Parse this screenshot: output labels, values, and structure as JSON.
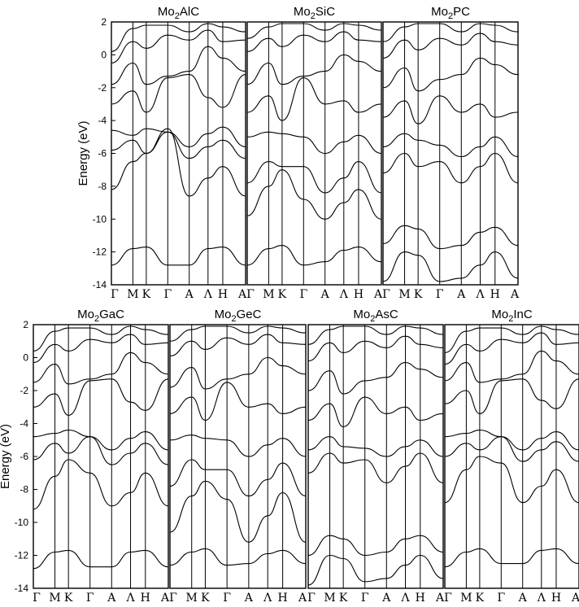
{
  "chart_data": {
    "type": "line",
    "ylabel": "Energy (eV)",
    "ylim": [
      -14,
      2
    ],
    "yticks": [
      2,
      0,
      -2,
      -4,
      -6,
      -8,
      -10,
      -12,
      -14
    ],
    "kpath": [
      "Γ",
      "M",
      "K",
      "Γ",
      "A",
      "Λ",
      "H",
      "A"
    ],
    "kpos": [
      0,
      0.16,
      0.26,
      0.42,
      0.58,
      0.72,
      0.83,
      1.0
    ],
    "panels": [
      {
        "title_main": "Mo",
        "title_sub": "2",
        "title_rest": "AlC",
        "bands": [
          {
            "name": "b1",
            "y": [
              -12.8,
              -11.8,
              -11.7,
              -12.8,
              -12.8,
              -11.8,
              -11.7,
              -12.8
            ]
          },
          {
            "name": "b2",
            "y": [
              -8.2,
              -6.5,
              -6.0,
              -4.5,
              -8.6,
              -7.5,
              -6.8,
              -8.6
            ]
          },
          {
            "name": "b3",
            "y": [
              -5.8,
              -5.2,
              -6.0,
              -4.7,
              -6.3,
              -5.6,
              -5.2,
              -6.3
            ]
          },
          {
            "name": "b4",
            "y": [
              -4.6,
              -4.9,
              -4.5,
              -4.7,
              -5.6,
              -4.8,
              -4.4,
              -5.6
            ]
          },
          {
            "name": "b5",
            "y": [
              -3.0,
              -2.2,
              -3.5,
              -1.4,
              -1.2,
              -2.6,
              -3.2,
              -1.2
            ]
          },
          {
            "name": "b6",
            "y": [
              -1.8,
              -0.5,
              -1.8,
              -1.3,
              -1.0,
              0.5,
              -0.2,
              -1.0
            ]
          },
          {
            "name": "b7",
            "y": [
              -0.5,
              0.8,
              0.4,
              1.2,
              0.9,
              1.5,
              0.8,
              0.9
            ]
          },
          {
            "name": "b8",
            "y": [
              0.2,
              1.6,
              1.8,
              1.8,
              1.4,
              1.9,
              1.7,
              1.4
            ]
          }
        ]
      },
      {
        "title_main": "Mo",
        "title_sub": "2",
        "title_rest": "SiC",
        "bands": [
          {
            "name": "b1",
            "y": [
              -12.8,
              -11.8,
              -11.6,
              -12.8,
              -12.6,
              -11.9,
              -11.7,
              -12.6
            ]
          },
          {
            "name": "b2",
            "y": [
              -9.8,
              -8.0,
              -7.0,
              -8.8,
              -10.0,
              -9.0,
              -8.2,
              -10.0
            ]
          },
          {
            "name": "b3",
            "y": [
              -7.8,
              -6.5,
              -6.8,
              -6.8,
              -8.4,
              -7.5,
              -6.5,
              -8.4
            ]
          },
          {
            "name": "b4",
            "y": [
              -5.0,
              -4.7,
              -4.8,
              -5.0,
              -6.0,
              -5.3,
              -4.9,
              -6.0
            ]
          },
          {
            "name": "b5",
            "y": [
              -3.5,
              -2.5,
              -4.0,
              -1.4,
              -3.0,
              -2.8,
              -3.5,
              -3.0
            ]
          },
          {
            "name": "b6",
            "y": [
              -1.8,
              -0.5,
              -1.8,
              -1.3,
              -1.0,
              0.0,
              -0.4,
              -1.0
            ]
          },
          {
            "name": "b7",
            "y": [
              0.2,
              1.0,
              0.5,
              1.2,
              0.8,
              1.4,
              0.9,
              0.8
            ]
          },
          {
            "name": "b8",
            "y": [
              1.0,
              1.7,
              1.9,
              1.9,
              1.5,
              1.9,
              1.8,
              1.5
            ]
          }
        ]
      },
      {
        "title_main": "Mo",
        "title_sub": "2",
        "title_rest": "PC",
        "bands": [
          {
            "name": "b1",
            "y": [
              -13.8,
              -12.0,
              -12.2,
              -13.8,
              -13.6,
              -12.8,
              -12.0,
              -13.6
            ]
          },
          {
            "name": "b2",
            "y": [
              -11.5,
              -10.4,
              -10.6,
              -11.8,
              -11.6,
              -10.8,
              -10.5,
              -11.6
            ]
          },
          {
            "name": "b3",
            "y": [
              -7.2,
              -6.0,
              -6.8,
              -6.5,
              -7.8,
              -6.8,
              -6.0,
              -7.8
            ]
          },
          {
            "name": "b4",
            "y": [
              -5.6,
              -4.8,
              -5.2,
              -5.5,
              -6.2,
              -5.6,
              -5.0,
              -6.2
            ]
          },
          {
            "name": "b5",
            "y": [
              -3.8,
              -2.8,
              -4.2,
              -2.5,
              -3.5,
              -3.0,
              -3.8,
              -3.5
            ]
          },
          {
            "name": "b6",
            "y": [
              -2.0,
              -0.8,
              -2.2,
              -1.5,
              -1.2,
              -0.2,
              -0.6,
              -1.2
            ]
          },
          {
            "name": "b7",
            "y": [
              -0.2,
              0.9,
              0.3,
              1.0,
              0.6,
              1.3,
              0.8,
              0.6
            ]
          },
          {
            "name": "b8",
            "y": [
              0.8,
              1.7,
              1.9,
              1.9,
              1.4,
              1.9,
              1.8,
              1.4
            ]
          }
        ]
      },
      {
        "title_main": "Mo",
        "title_sub": "2",
        "title_rest": "GaC",
        "bands": [
          {
            "name": "b1",
            "y": [
              -12.8,
              -11.8,
              -11.7,
              -12.7,
              -12.7,
              -11.8,
              -11.7,
              -12.7
            ]
          },
          {
            "name": "b2",
            "y": [
              -9.2,
              -7.2,
              -6.2,
              -7.0,
              -9.0,
              -8.2,
              -7.0,
              -9.0
            ]
          },
          {
            "name": "b3",
            "y": [
              -6.2,
              -5.2,
              -5.8,
              -4.8,
              -6.5,
              -5.8,
              -5.2,
              -6.5
            ]
          },
          {
            "name": "b4",
            "y": [
              -4.8,
              -4.6,
              -4.4,
              -4.8,
              -5.6,
              -4.9,
              -4.5,
              -5.6
            ]
          },
          {
            "name": "b5",
            "y": [
              -3.0,
              -2.2,
              -3.5,
              -1.4,
              -1.3,
              -2.7,
              -3.2,
              -1.3
            ]
          },
          {
            "name": "b6",
            "y": [
              -1.5,
              -0.4,
              -1.6,
              -1.3,
              -1.0,
              0.3,
              -0.3,
              -1.0
            ]
          },
          {
            "name": "b7",
            "y": [
              -0.3,
              0.8,
              0.4,
              1.1,
              0.9,
              1.4,
              0.8,
              0.9
            ]
          },
          {
            "name": "b8",
            "y": [
              0.4,
              1.6,
              1.8,
              1.8,
              1.4,
              1.9,
              1.7,
              1.4
            ]
          }
        ]
      },
      {
        "title_main": "Mo",
        "title_sub": "2",
        "title_rest": "GeC",
        "bands": [
          {
            "name": "b1",
            "y": [
              -12.6,
              -11.8,
              -11.6,
              -12.6,
              -12.5,
              -11.9,
              -11.7,
              -12.5
            ]
          },
          {
            "name": "b2",
            "y": [
              -10.6,
              -8.4,
              -7.5,
              -8.6,
              -11.2,
              -9.6,
              -8.2,
              -11.2
            ]
          },
          {
            "name": "b3",
            "y": [
              -7.8,
              -6.2,
              -6.8,
              -6.8,
              -8.4,
              -7.4,
              -6.4,
              -8.4
            ]
          },
          {
            "name": "b4",
            "y": [
              -5.0,
              -4.7,
              -4.9,
              -5.0,
              -6.0,
              -5.3,
              -4.9,
              -6.0
            ]
          },
          {
            "name": "b5",
            "y": [
              -3.4,
              -2.4,
              -3.8,
              -1.5,
              -3.0,
              -2.8,
              -3.4,
              -3.0
            ]
          },
          {
            "name": "b6",
            "y": [
              -1.8,
              -0.6,
              -1.9,
              -1.3,
              -1.0,
              0.0,
              -0.5,
              -1.0
            ]
          },
          {
            "name": "b7",
            "y": [
              0.1,
              1.0,
              0.5,
              1.2,
              0.8,
              1.4,
              0.9,
              0.8
            ]
          },
          {
            "name": "b8",
            "y": [
              1.0,
              1.7,
              1.9,
              1.9,
              1.5,
              1.9,
              1.8,
              1.5
            ]
          }
        ]
      },
      {
        "title_main": "Mo",
        "title_sub": "2",
        "title_rest": "AsC",
        "bands": [
          {
            "name": "b1",
            "y": [
              -13.8,
              -12.0,
              -12.2,
              -13.6,
              -13.4,
              -12.6,
              -12.0,
              -13.4
            ]
          },
          {
            "name": "b2",
            "y": [
              -12.0,
              -10.8,
              -11.0,
              -12.0,
              -11.8,
              -11.0,
              -10.8,
              -11.8
            ]
          },
          {
            "name": "b3",
            "y": [
              -7.0,
              -5.8,
              -6.4,
              -6.2,
              -7.6,
              -6.6,
              -5.8,
              -7.6
            ]
          },
          {
            "name": "b4",
            "y": [
              -5.6,
              -4.8,
              -5.4,
              -5.5,
              -6.0,
              -5.4,
              -5.0,
              -6.0
            ]
          },
          {
            "name": "b5",
            "y": [
              -3.8,
              -2.8,
              -4.2,
              -2.4,
              -3.4,
              -3.0,
              -3.8,
              -3.4
            ]
          },
          {
            "name": "b6",
            "y": [
              -2.0,
              -0.8,
              -2.2,
              -1.4,
              -1.2,
              -0.3,
              -0.7,
              -1.2
            ]
          },
          {
            "name": "b7",
            "y": [
              -0.2,
              0.9,
              0.3,
              1.0,
              0.6,
              1.3,
              0.8,
              0.6
            ]
          },
          {
            "name": "b8",
            "y": [
              0.8,
              1.7,
              1.9,
              1.9,
              1.4,
              1.9,
              1.8,
              1.4
            ]
          }
        ]
      },
      {
        "title_main": "Mo",
        "title_sub": "2",
        "title_rest": "InC",
        "bands": [
          {
            "name": "b1",
            "y": [
              -12.7,
              -11.8,
              -11.6,
              -12.5,
              -12.5,
              -11.7,
              -11.6,
              -12.5
            ]
          },
          {
            "name": "b2",
            "y": [
              -8.8,
              -6.8,
              -6.0,
              -6.4,
              -8.8,
              -7.8,
              -6.8,
              -8.8
            ]
          },
          {
            "name": "b3",
            "y": [
              -6.0,
              -5.2,
              -5.6,
              -4.8,
              -6.3,
              -5.6,
              -5.1,
              -6.3
            ]
          },
          {
            "name": "b4",
            "y": [
              -4.8,
              -4.6,
              -4.4,
              -4.8,
              -5.6,
              -4.9,
              -4.5,
              -5.6
            ]
          },
          {
            "name": "b5",
            "y": [
              -2.8,
              -2.0,
              -3.4,
              -1.4,
              -1.3,
              -2.6,
              -3.1,
              -1.3
            ]
          },
          {
            "name": "b6",
            "y": [
              -1.4,
              -0.3,
              -1.5,
              -1.3,
              -1.0,
              0.4,
              -0.2,
              -1.0
            ]
          },
          {
            "name": "b7",
            "y": [
              -0.4,
              0.8,
              0.4,
              1.1,
              0.9,
              1.5,
              0.8,
              0.9
            ]
          },
          {
            "name": "b8",
            "y": [
              0.3,
              1.6,
              1.8,
              1.8,
              1.4,
              1.9,
              1.7,
              1.4
            ]
          }
        ]
      }
    ]
  }
}
